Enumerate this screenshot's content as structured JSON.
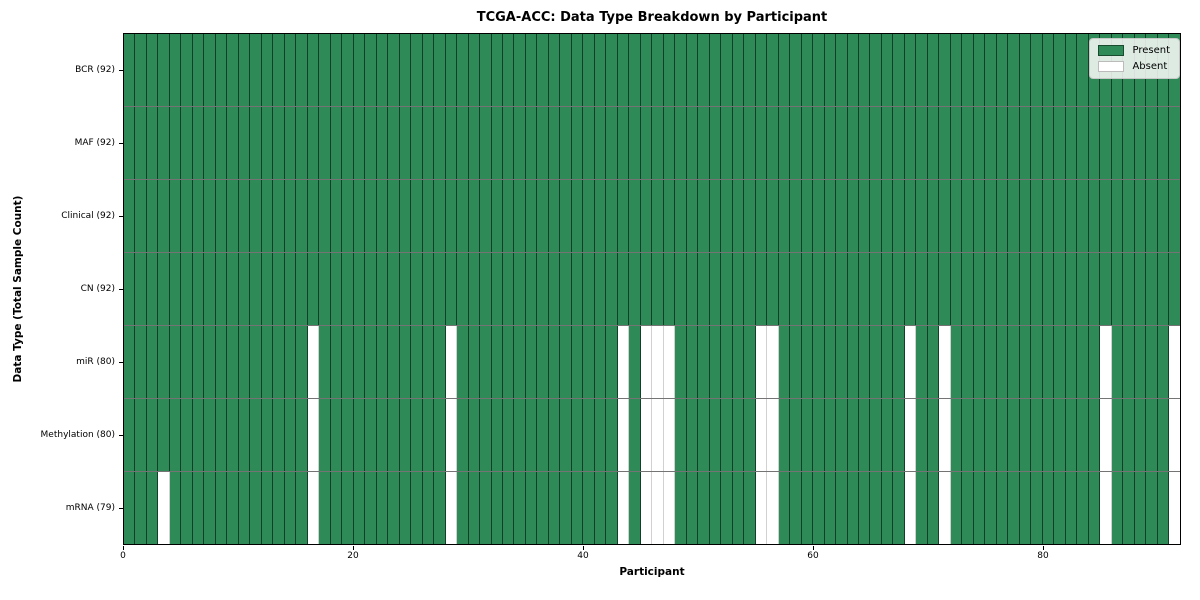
{
  "figure": {
    "title": "TCGA-ACC: Data Type Breakdown by Participant",
    "xlabel": "Participant",
    "ylabel": "Data Type (Total Sample Count)"
  },
  "legend": {
    "items": [
      {
        "label": "Present",
        "color": "#2e8b57"
      },
      {
        "label": "Absent",
        "color": "#ffffff"
      }
    ]
  },
  "chart_data": {
    "type": "heatmap",
    "title": "TCGA-ACC: Data Type Breakdown by Participant",
    "xlabel": "Participant",
    "ylabel": "Data Type (Total Sample Count)",
    "legend": [
      "Present",
      "Absent"
    ],
    "legend_position": "upper right",
    "grid": "cell-edges",
    "colors": {
      "present": "#2e8b57",
      "absent": "#ffffff"
    },
    "n_participants": 92,
    "x_range": [
      0,
      92
    ],
    "x_ticks": [
      0,
      20,
      40,
      60,
      80
    ],
    "rows": [
      {
        "label": "BCR (92)",
        "data_type": "BCR",
        "present_count": 92,
        "absent_participants": []
      },
      {
        "label": "MAF (92)",
        "data_type": "MAF",
        "present_count": 92,
        "absent_participants": []
      },
      {
        "label": "Clinical (92)",
        "data_type": "Clinical",
        "present_count": 92,
        "absent_participants": []
      },
      {
        "label": "CN (92)",
        "data_type": "CN",
        "present_count": 92,
        "absent_participants": []
      },
      {
        "label": "miR (80)",
        "data_type": "miR",
        "present_count": 80,
        "absent_participants": [
          16,
          28,
          43,
          45,
          46,
          47,
          55,
          56,
          68,
          71,
          85,
          91
        ]
      },
      {
        "label": "Methylation (80)",
        "data_type": "Methylation",
        "present_count": 80,
        "absent_participants": [
          16,
          28,
          43,
          45,
          46,
          47,
          55,
          56,
          68,
          71,
          85,
          91
        ]
      },
      {
        "label": "mRNA (79)",
        "data_type": "mRNA",
        "present_count": 79,
        "absent_participants": [
          3,
          16,
          28,
          43,
          45,
          46,
          47,
          55,
          56,
          68,
          71,
          85,
          91
        ]
      }
    ]
  }
}
